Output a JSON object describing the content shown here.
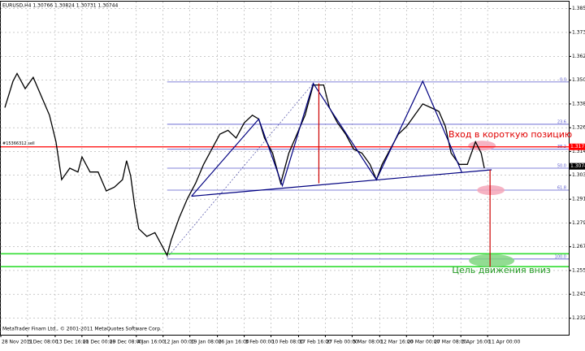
{
  "chart_data": {
    "type": "line",
    "title": "EURUSD,H4 1.30766 1.30824 1.30731 1.30744",
    "footer": "MetaTrader Finam Ltd., © 2001-2011 MetaQuotes Software Corp.",
    "color": "#000000",
    "x": [
      5,
      15,
      20,
      30,
      40,
      50,
      60,
      68,
      75,
      85,
      95,
      100,
      110,
      120,
      130,
      140,
      150,
      155,
      160,
      165,
      170,
      180,
      190,
      200,
      205,
      210,
      220,
      230,
      240,
      250,
      260,
      270,
      280,
      290,
      300,
      310,
      318,
      325,
      335,
      345,
      355,
      365,
      375,
      385,
      392,
      398,
      405,
      415,
      425,
      435,
      445,
      455,
      463,
      470,
      480,
      490,
      500,
      510,
      520,
      530,
      540,
      548,
      555,
      565,
      575,
      585,
      592,
      596
    ],
    "values": [
      1.3366,
      1.3497,
      1.3535,
      1.346,
      1.3516,
      1.3422,
      1.3328,
      1.3196,
      1.3008,
      1.3065,
      1.3046,
      1.3121,
      1.3046,
      1.3046,
      1.2952,
      1.2971,
      1.3008,
      1.3102,
      1.3027,
      1.2877,
      1.2764,
      1.2726,
      1.2745,
      1.267,
      1.2632,
      1.2708,
      1.282,
      1.2914,
      1.299,
      1.3084,
      1.3159,
      1.3234,
      1.3253,
      1.3215,
      1.329,
      1.3328,
      1.3309,
      1.3215,
      1.314,
      1.299,
      1.314,
      1.3234,
      1.3328,
      1.3478,
      1.3478,
      1.3478,
      1.3366,
      1.329,
      1.3234,
      1.3159,
      1.314,
      1.3084,
      1.3008,
      1.3084,
      1.3159,
      1.3234,
      1.3272,
      1.3328,
      1.3384,
      1.3366,
      1.3347,
      1.3272,
      1.314,
      1.3084,
      1.3084,
      1.3196,
      1.314,
      1.3065
    ],
    "xlim": [
      0,
      700
    ],
    "ylim": [
      1.2238,
      1.3892
    ],
    "xticks": [
      {
        "value": 0,
        "label": "28 Nov 2011"
      },
      {
        "value": 33,
        "label": "5 Dec 08:00"
      },
      {
        "value": 67,
        "label": "13 Dec 16:00"
      },
      {
        "value": 100,
        "label": "21 Dec 00:00"
      },
      {
        "value": 133,
        "label": "29 Dec 08:00"
      },
      {
        "value": 167,
        "label": "4 Jan 16:00"
      },
      {
        "value": 200,
        "label": "12 Jan 00:00"
      },
      {
        "value": 233,
        "label": "19 Jan 08:00"
      },
      {
        "value": 267,
        "label": "26 Jan 16:00"
      },
      {
        "value": 300,
        "label": "3 Feb 00:00"
      },
      {
        "value": 333,
        "label": "10 Feb 08:00"
      },
      {
        "value": 367,
        "label": "17 Feb 16:00"
      },
      {
        "value": 400,
        "label": "27 Feb 00:00"
      },
      {
        "value": 433,
        "label": "5 Mar 08:00"
      },
      {
        "value": 467,
        "label": "12 Mar 16:00"
      },
      {
        "value": 500,
        "label": "20 Mar 00:00"
      },
      {
        "value": 533,
        "label": "27 Mar 08:00"
      },
      {
        "value": 567,
        "label": "3 Apr 16:00"
      },
      {
        "value": 600,
        "label": "11 Apr 00:00"
      }
    ],
    "yticks": [
      1.3857,
      1.3739,
      1.362,
      1.3502,
      1.3384,
      1.3266,
      1.3148,
      1.303,
      1.2911,
      1.2793,
      1.2675,
      1.2557,
      1.2439,
      1.232
    ],
    "grid": true,
    "order": {
      "label": "#15366312 sell",
      "price": 1.3171,
      "price_label": "1.31710",
      "color": "#ff0000"
    },
    "current_price": 1.30744,
    "target_lines": {
      "color": "#33dd33",
      "prices": [
        1.264,
        1.2576
      ]
    },
    "fibo": {
      "color": "#5a5acd",
      "x_start": 205,
      "levels": [
        {
          "label": "0.0",
          "price": 1.3493
        },
        {
          "label": "23.6",
          "price": 1.3283
        },
        {
          "label": "38.2",
          "price": 1.3159
        },
        {
          "label": "50.0",
          "price": 1.3065
        },
        {
          "label": "61.8",
          "price": 1.2956
        },
        {
          "label": "100.0",
          "price": 1.2614
        }
      ]
    },
    "pattern": {
      "color": "#000080",
      "points": {
        "x": [
          235,
          318,
          347,
          385,
          463,
          520,
          568
        ],
        "y": [
          1.2926,
          1.3309,
          1.2978,
          1.3486,
          1.3008,
          1.3497,
          1.3046
        ]
      },
      "neckline": {
        "x": [
          235,
          605
        ],
        "y": [
          1.2926,
          1.3057
        ]
      },
      "trend": {
        "x": [
          205,
          385
        ],
        "y": [
          1.2621,
          1.3486
        ]
      }
    },
    "projections": {
      "color": "#cc0000",
      "lines": [
        {
          "x": 392,
          "y": [
            1.3486,
            1.299
          ]
        },
        {
          "x": 603,
          "y": [
            1.3057,
            1.2576
          ]
        }
      ]
    },
    "highlights": [
      {
        "x": 593,
        "y": 1.3177,
        "color": "#f4a6b8"
      },
      {
        "x": 604,
        "y": 1.2956,
        "color": "#f4a6b8"
      },
      {
        "x": 605,
        "y": 1.2606,
        "color": "#7fd67f"
      }
    ],
    "annotations": [
      {
        "text": "Вход в короткую позицию",
        "x": 628,
        "y": 1.323,
        "color": "#e00000"
      },
      {
        "text": "Цель движения вниз",
        "x": 617,
        "y": 1.2557,
        "color": "#229922"
      }
    ]
  }
}
